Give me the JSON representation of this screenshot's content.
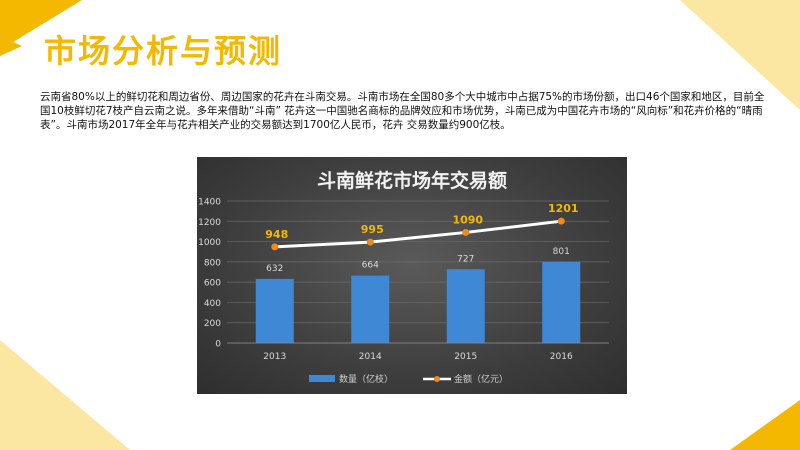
{
  "page": {
    "title": "市场分析与预测",
    "description": "云南省80%以上的鲜切花和周边省份、周边国家的花卉在斗南交易。斗南市场在全国80多个大中城市中占据75%的市场份额，出口46个国家和地区，目前全国10枝鲜切花7枝产自云南之说。多年来借助“斗南”  花卉这一中国驰名商标的品牌效应和市场优势，斗南已成为中国花卉市场的“风向标”和花卉价格的“晴雨表”。斗南市场2017年全年与花卉相关产业的交易额达到1700亿人民币，花卉 交易数量约900亿枝。",
    "accent_color": "#f5b800"
  },
  "chart_data": {
    "type": "bar",
    "title": "斗南鲜花市场年交易额",
    "categories": [
      "2013",
      "2014",
      "2015",
      "2016"
    ],
    "series": [
      {
        "name": "数量（亿枝）",
        "type": "bar",
        "values": [
          632,
          664,
          727,
          801
        ],
        "color": "#3f88d6"
      },
      {
        "name": "金额（亿元）",
        "type": "line",
        "values": [
          948,
          995,
          1090,
          1201
        ],
        "color": "#ffffff",
        "marker_color": "#f08a1c",
        "label_color": "#f5b800"
      }
    ],
    "yticks": [
      "0",
      "200",
      "400",
      "600",
      "800",
      "1000",
      "1200",
      "1400"
    ],
    "ylim": [
      0,
      1400
    ],
    "legend_position": "bottom",
    "grid": true
  }
}
